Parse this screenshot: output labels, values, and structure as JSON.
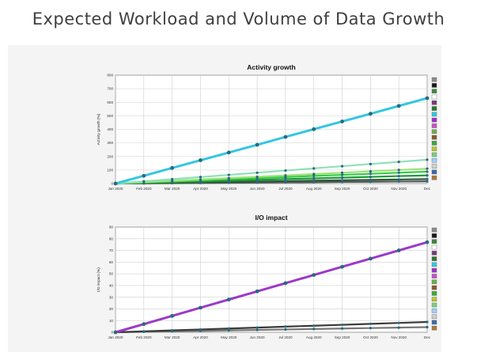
{
  "slide": {
    "title": "Expected Workload and Volume of Data Growth"
  },
  "chart_data": [
    {
      "type": "line",
      "title": "Activity growth",
      "ylabel": "Activity growth (%)",
      "xlabel": "",
      "ylim": [
        0,
        800
      ],
      "yticks": [
        0,
        100,
        200,
        300,
        400,
        500,
        600,
        700,
        800
      ],
      "grid": true,
      "legend": "right",
      "categories": [
        "Jan 2020",
        "Feb 2020",
        "Mar 2020",
        "Apr 2020",
        "May 2020",
        "Jun 2020",
        "Jul 2020",
        "Aug 2020",
        "Sep 2020",
        "Oct 2020",
        "Nov 2020",
        "Dec"
      ],
      "series": [
        {
          "color": "#35c6e0",
          "values": [
            0,
            57,
            115,
            172,
            229,
            286,
            344,
            401,
            458,
            515,
            573,
            630
          ]
        },
        {
          "color": "#8fe0b8",
          "values": [
            0,
            16,
            32,
            48,
            64,
            80,
            96,
            112,
            128,
            144,
            160,
            176
          ]
        },
        {
          "color": "#9ee07a",
          "values": [
            0,
            10,
            20,
            30,
            40,
            50,
            60,
            70,
            80,
            90,
            100,
            110
          ]
        },
        {
          "color": "#33cc44",
          "values": [
            0,
            8,
            16,
            24,
            32,
            40,
            48,
            56,
            64,
            72,
            80,
            88
          ]
        },
        {
          "color": "#1f9a38",
          "values": [
            0,
            5,
            11,
            16,
            22,
            27,
            33,
            38,
            44,
            49,
            55,
            60
          ]
        },
        {
          "color": "#2a5a3a",
          "values": [
            0,
            3,
            6,
            9,
            12,
            15,
            18,
            21,
            24,
            27,
            30,
            33
          ]
        },
        {
          "color": "#555555",
          "values": [
            0,
            1,
            3,
            4,
            6,
            7,
            9,
            10,
            12,
            13,
            15,
            16
          ]
        }
      ],
      "legend_swatches": [
        "#8a8a8a",
        "#1a1a1a",
        "#3a8a3a",
        "#ffffff",
        "#7a3a7a",
        "#2a7a2a",
        "#35c6e0",
        "#9b30c8",
        "#c850c8",
        "#6ab04c",
        "#8b5a2b",
        "#3aaa3a",
        "#b8c830",
        "#7ad07a",
        "#a0d0ff",
        "#d0d0d0",
        "#3a6aaa",
        "#aa7a3a"
      ]
    },
    {
      "type": "line",
      "title": "I/O impact",
      "ylabel": "I/O impact (%)",
      "xlabel": "",
      "ylim": [
        0,
        90
      ],
      "yticks": [
        0,
        10,
        20,
        30,
        40,
        50,
        60,
        70,
        80,
        90
      ],
      "grid": true,
      "legend": "right",
      "categories": [
        "Jan 2020",
        "Feb 2020",
        "Mar 2020",
        "Apr 2020",
        "May 2020",
        "Jun 2020",
        "Jul 2020",
        "Aug 2020",
        "Sep 2020",
        "Oct 2020",
        "Nov 2020",
        "Dec"
      ],
      "series": [
        {
          "color": "#9b3ac8",
          "values": [
            0,
            7,
            14,
            21,
            28,
            35,
            42,
            49,
            56,
            63,
            70,
            77
          ]
        },
        {
          "color": "#3a3a3a",
          "values": [
            0,
            0.8,
            1.6,
            2.4,
            3.2,
            4.0,
            4.8,
            5.6,
            6.4,
            7.2,
            8.0,
            8.8
          ]
        },
        {
          "color": "#777777",
          "values": [
            0,
            0.4,
            0.8,
            1.2,
            1.6,
            2.0,
            2.4,
            2.8,
            3.2,
            3.6,
            4.0,
            4.4
          ]
        }
      ],
      "legend_swatches": [
        "#8a8a8a",
        "#1a1a1a",
        "#3a8a3a",
        "#ffffff",
        "#7a3a7a",
        "#2a7a2a",
        "#35c6e0",
        "#9b30c8",
        "#c850c8",
        "#6ab04c",
        "#8b5a2b",
        "#3aaa3a",
        "#b8c830",
        "#7ad07a",
        "#a0d0ff",
        "#d0d0d0",
        "#3a6aaa",
        "#aa7a3a"
      ]
    }
  ]
}
